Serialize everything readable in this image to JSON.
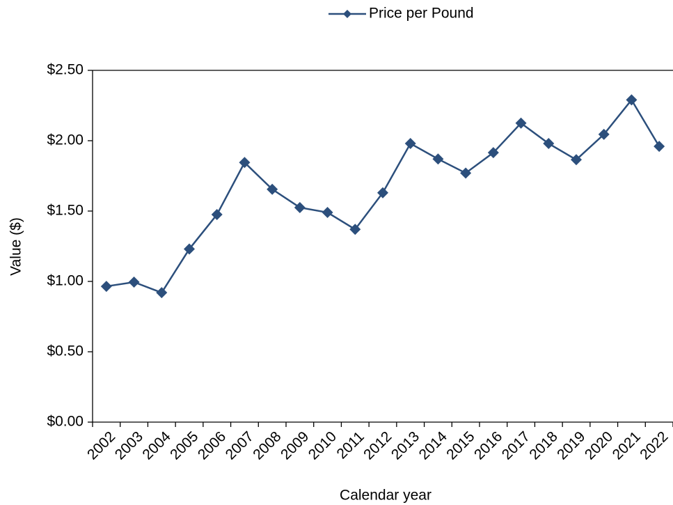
{
  "chart_data": {
    "type": "line",
    "x_label": "Calendar year",
    "y_label": "Value ($)",
    "categories": [
      "2002",
      "2003",
      "2004",
      "2005",
      "2006",
      "2007",
      "2008",
      "2009",
      "2010",
      "2011",
      "2012",
      "2013",
      "2014",
      "2015",
      "2016",
      "2017",
      "2018",
      "2019",
      "2020",
      "2021",
      "2022"
    ],
    "series": [
      {
        "name": "Price per Pound",
        "color": "#2c4f7c",
        "values": [
          0.965,
          0.995,
          0.92,
          1.23,
          1.475,
          1.845,
          1.655,
          1.525,
          1.49,
          1.37,
          1.63,
          1.98,
          1.87,
          1.77,
          1.915,
          2.125,
          1.98,
          1.865,
          2.045,
          2.29,
          1.96
        ]
      }
    ],
    "ylim": [
      0,
      2.5
    ],
    "yticks": [
      {
        "value": 0,
        "label": "$0.00"
      },
      {
        "value": 0.5,
        "label": "$0.50"
      },
      {
        "value": 1,
        "label": "$1.00"
      },
      {
        "value": 1.5,
        "label": "$1.50"
      },
      {
        "value": 2,
        "label": "$2.00"
      },
      {
        "value": 2.5,
        "label": "$2.50"
      }
    ],
    "grid": false,
    "legend": "top"
  }
}
